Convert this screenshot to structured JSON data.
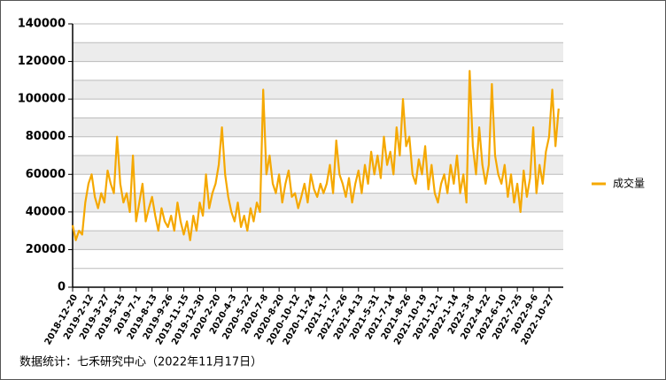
{
  "chart_data": {
    "type": "line",
    "categories": [
      "2018-12-20",
      null,
      null,
      null,
      null,
      "2019-2-12",
      null,
      null,
      null,
      null,
      "2019-3-27",
      null,
      null,
      null,
      null,
      "2019-5-15",
      null,
      null,
      null,
      null,
      "2019-7-1",
      null,
      null,
      null,
      null,
      "2019-8-13",
      null,
      null,
      null,
      null,
      "2019-9-26",
      null,
      null,
      null,
      null,
      "2019-11-15",
      null,
      null,
      null,
      null,
      "2019-12-30",
      null,
      null,
      null,
      null,
      "2020-2-20",
      null,
      null,
      null,
      null,
      "2020-4-3",
      null,
      null,
      null,
      null,
      "2020-5-22",
      null,
      null,
      null,
      null,
      "2020-7-8",
      null,
      null,
      null,
      null,
      "2020-8-20",
      null,
      null,
      null,
      null,
      "2020-10-12",
      null,
      null,
      null,
      null,
      "2020-11-24",
      null,
      null,
      null,
      null,
      "2021-1-7",
      null,
      null,
      null,
      null,
      "2021-2-26",
      null,
      null,
      null,
      null,
      "2021-4-13",
      null,
      null,
      null,
      null,
      "2021-5-31",
      null,
      null,
      null,
      null,
      "2021-7-14",
      null,
      null,
      null,
      null,
      "2021-8-26",
      null,
      null,
      null,
      null,
      "2021-10-19",
      null,
      null,
      null,
      null,
      "2021-12-1",
      null,
      null,
      null,
      null,
      "2022-1-14",
      null,
      null,
      null,
      null,
      "2022-3-8",
      null,
      null,
      null,
      null,
      "2022-4-22",
      null,
      null,
      null,
      null,
      "2022-6-10",
      null,
      null,
      null,
      null,
      "2022-7-25",
      null,
      null,
      null,
      null,
      "2022-9-6",
      null,
      null,
      null,
      null,
      "2022-10-27",
      null,
      null,
      null
    ],
    "series": [
      {
        "name": "成交量",
        "color": "#f5a800",
        "values": [
          33000,
          25000,
          30000,
          28000,
          45000,
          55000,
          60000,
          48000,
          42000,
          50000,
          45000,
          62000,
          55000,
          50000,
          80000,
          55000,
          45000,
          50000,
          40000,
          70000,
          35000,
          45000,
          55000,
          35000,
          42000,
          48000,
          38000,
          30000,
          42000,
          35000,
          32000,
          38000,
          30000,
          45000,
          35000,
          28000,
          35000,
          25000,
          38000,
          30000,
          45000,
          38000,
          60000,
          42000,
          50000,
          55000,
          65000,
          85000,
          60000,
          48000,
          40000,
          35000,
          45000,
          32000,
          38000,
          30000,
          42000,
          35000,
          45000,
          40000,
          105000,
          60000,
          70000,
          55000,
          50000,
          60000,
          45000,
          55000,
          62000,
          48000,
          50000,
          42000,
          48000,
          55000,
          45000,
          60000,
          52000,
          48000,
          55000,
          50000,
          55000,
          65000,
          50000,
          78000,
          60000,
          55000,
          48000,
          58000,
          45000,
          55000,
          62000,
          50000,
          65000,
          55000,
          72000,
          60000,
          70000,
          58000,
          80000,
          65000,
          72000,
          60000,
          85000,
          70000,
          100000,
          75000,
          80000,
          60000,
          55000,
          68000,
          60000,
          75000,
          52000,
          65000,
          50000,
          45000,
          55000,
          60000,
          50000,
          65000,
          55000,
          70000,
          50000,
          60000,
          45000,
          115000,
          75000,
          60000,
          85000,
          65000,
          55000,
          65000,
          108000,
          70000,
          60000,
          55000,
          65000,
          48000,
          60000,
          45000,
          55000,
          40000,
          62000,
          48000,
          58000,
          85000,
          50000,
          65000,
          55000,
          72000,
          80000,
          105000,
          75000,
          95000
        ]
      }
    ],
    "ylim": [
      0,
      140000
    ],
    "yticks": [
      0,
      20000,
      40000,
      60000,
      80000,
      100000,
      120000,
      140000
    ],
    "legend": "right",
    "footnote": "数据统计：七禾研究中心（2022年11月17日）"
  }
}
